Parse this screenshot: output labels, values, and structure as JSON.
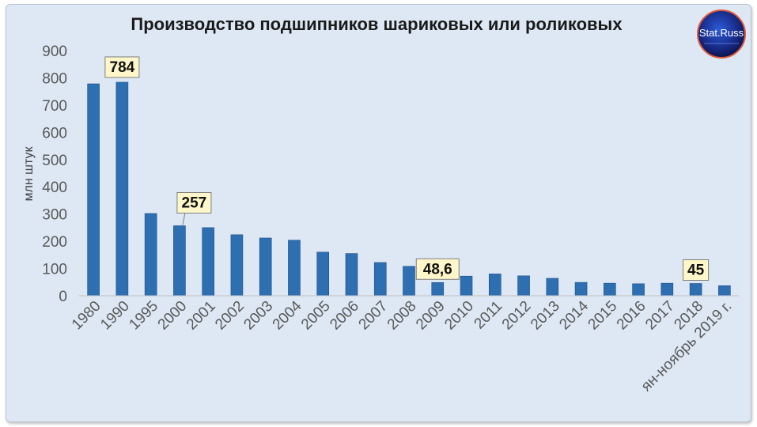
{
  "logo": {
    "text": "Stat.Russ"
  },
  "colors": {
    "bar": "#2e6fb1",
    "background": "#dde8f4",
    "callout_fill": "#fff7c9"
  },
  "chart_data": {
    "type": "bar",
    "title": "Производство подшипников шариковых или роликовых",
    "ylabel": "млн штук",
    "xlabel": "",
    "ylim": [
      0,
      900
    ],
    "yticks": [
      0,
      100,
      200,
      300,
      400,
      500,
      600,
      700,
      800,
      900
    ],
    "grid": false,
    "categories": [
      "1980",
      "1990",
      "1995",
      "2000",
      "2001",
      "2002",
      "2003",
      "2004",
      "2005",
      "2006",
      "2007",
      "2008",
      "2009",
      "2010",
      "2011",
      "2012",
      "2013",
      "2014",
      "2015",
      "2016",
      "2017",
      "2018",
      "ян-ноябрь 2019 г."
    ],
    "values": [
      778,
      784,
      302,
      257,
      250,
      224,
      212,
      204,
      160,
      155,
      122,
      108,
      48.6,
      72,
      80,
      73,
      64,
      49,
      46,
      44,
      46,
      45,
      37
    ],
    "annotations": [
      {
        "category": "1990",
        "label": "784"
      },
      {
        "category": "2000",
        "label": "257"
      },
      {
        "category": "2009",
        "label": "48,6"
      },
      {
        "category": "2018",
        "label": "45"
      }
    ]
  }
}
